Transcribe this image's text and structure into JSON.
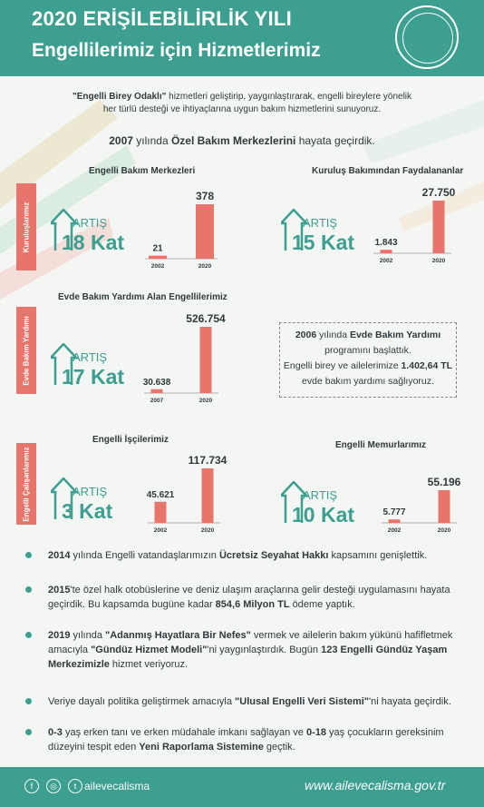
{
  "header": {
    "title": "2020 ERİŞİLEBİLİRLİK YILI",
    "subtitle": "Engellilerimiz için Hizmetlerimiz"
  },
  "intro": {
    "bold1": "\"Engelli Birey Odaklı\"",
    "rest1": " hizmetleri geliştirip, yaygınlaştırarak, engelli bireylere yönelik",
    "line2": "her türlü desteği ve ihtiyaçlarına uygun bakım hizmetlerini sunuyoruz.",
    "y2007": "2007",
    "mid2007": " yılında ",
    "bold2007": "Özel Bakım Merkezlerini",
    "end2007": " hayata geçirdik."
  },
  "side_labels": {
    "kuruluslarimiz": "Kuruluşlarımız",
    "evde": "Evde Bakım Yardımı",
    "engelli_calisanlar": "Engelli Çalışanlarımız"
  },
  "artis_word": "ARTIŞ",
  "chart_data": [
    {
      "type": "bar",
      "title": "Engelli Bakım Merkezleri",
      "categories": [
        "2002",
        "2020"
      ],
      "values": [
        21,
        378
      ],
      "value_labels": [
        "21",
        "378"
      ],
      "increase": "18 Kat"
    },
    {
      "type": "bar",
      "title": "Kuruluş Bakımından Faydalananlar",
      "categories": [
        "2002",
        "2020"
      ],
      "values": [
        1843,
        27750
      ],
      "value_labels": [
        "1.843",
        "27.750"
      ],
      "increase": "15 Kat"
    },
    {
      "type": "bar",
      "title": "Evde Bakım Yardımı Alan Engellilerimiz",
      "categories": [
        "2007",
        "2020"
      ],
      "values": [
        30638,
        526754
      ],
      "value_labels": [
        "30.638",
        "526.754"
      ],
      "increase": "17 Kat"
    },
    {
      "type": "bar",
      "title": "Engelli İşçilerimiz",
      "categories": [
        "2002",
        "2020"
      ],
      "values": [
        45621,
        117734
      ],
      "value_labels": [
        "45.621",
        "117.734"
      ],
      "increase": "3 Kat"
    },
    {
      "type": "bar",
      "title": "Engelli Memurlarımız",
      "categories": [
        "2002",
        "2020"
      ],
      "values": [
        5777,
        55196
      ],
      "value_labels": [
        "5.777",
        "55.196"
      ],
      "increase": "10 Kat"
    }
  ],
  "infobox": {
    "y": "2006",
    "mid": " yılında ",
    "bold": "Evde Bakım Yardımı",
    "l2": "programını başlattık.",
    "l3a": "Engelli birey ve ailelerimize ",
    "l3b": "1.402,64 TL",
    "l4": "evde bakım yardımı sağlıyoruz."
  },
  "bullets": [
    {
      "p1b": "2014",
      "p1": " yılında Engelli vatandaşlarımızın ",
      "p2b": "Ücretsiz Seyahat Hakkı",
      "p2": " kapsamını genişlettik."
    },
    {
      "p1b": "2015",
      "p1": "'te özel halk otobüslerine ve deniz ulaşım araçlarına gelir desteği uygulamasını hayata geçirdik. Bu kapsamda bugüne kadar ",
      "p2b": "854,6 Milyon TL",
      "p2": " ödeme yaptık."
    },
    {
      "p1b": "2019",
      "p1": " yılında ",
      "p2b": "\"Adanmış Hayatlara Bir Nefes\"",
      "p2": " vermek ve ailelerin bakım yükünü hafifletmek amacıyla ",
      "p3b": "\"Gündüz Hizmet Modeli\"",
      "p3": "'ni yaygınlaştırdık. Bugün ",
      "p4b": "123 Engelli Gündüz Yaşam Merkezimizle",
      "p4": " hizmet veriyoruz."
    },
    {
      "p1": "Veriye dayalı politika geliştirmek amacıyla ",
      "p2b": "\"Ulusal Engelli Veri Sistemi\"",
      "p2": "'ni hayata geçirdik."
    },
    {
      "p1b": "0-3",
      "p1": " yaş erken tanı ve erken müdahale imkanı sağlayan ve ",
      "p2b": "0-18",
      "p2": " yaş çocukların gereksinim düzeyini tespit eden ",
      "p3b": "Yeni Raporlama Sistemine",
      "p3": " geçtik."
    }
  ],
  "footer": {
    "handle": "ailevecalisma",
    "site": "www.ailevecalisma.gov.tr",
    "icon_fb": "f",
    "icon_ig": "◎",
    "icon_tw": "t"
  },
  "colors": {
    "teal": "#3c9f90",
    "coral": "#e8756b"
  }
}
